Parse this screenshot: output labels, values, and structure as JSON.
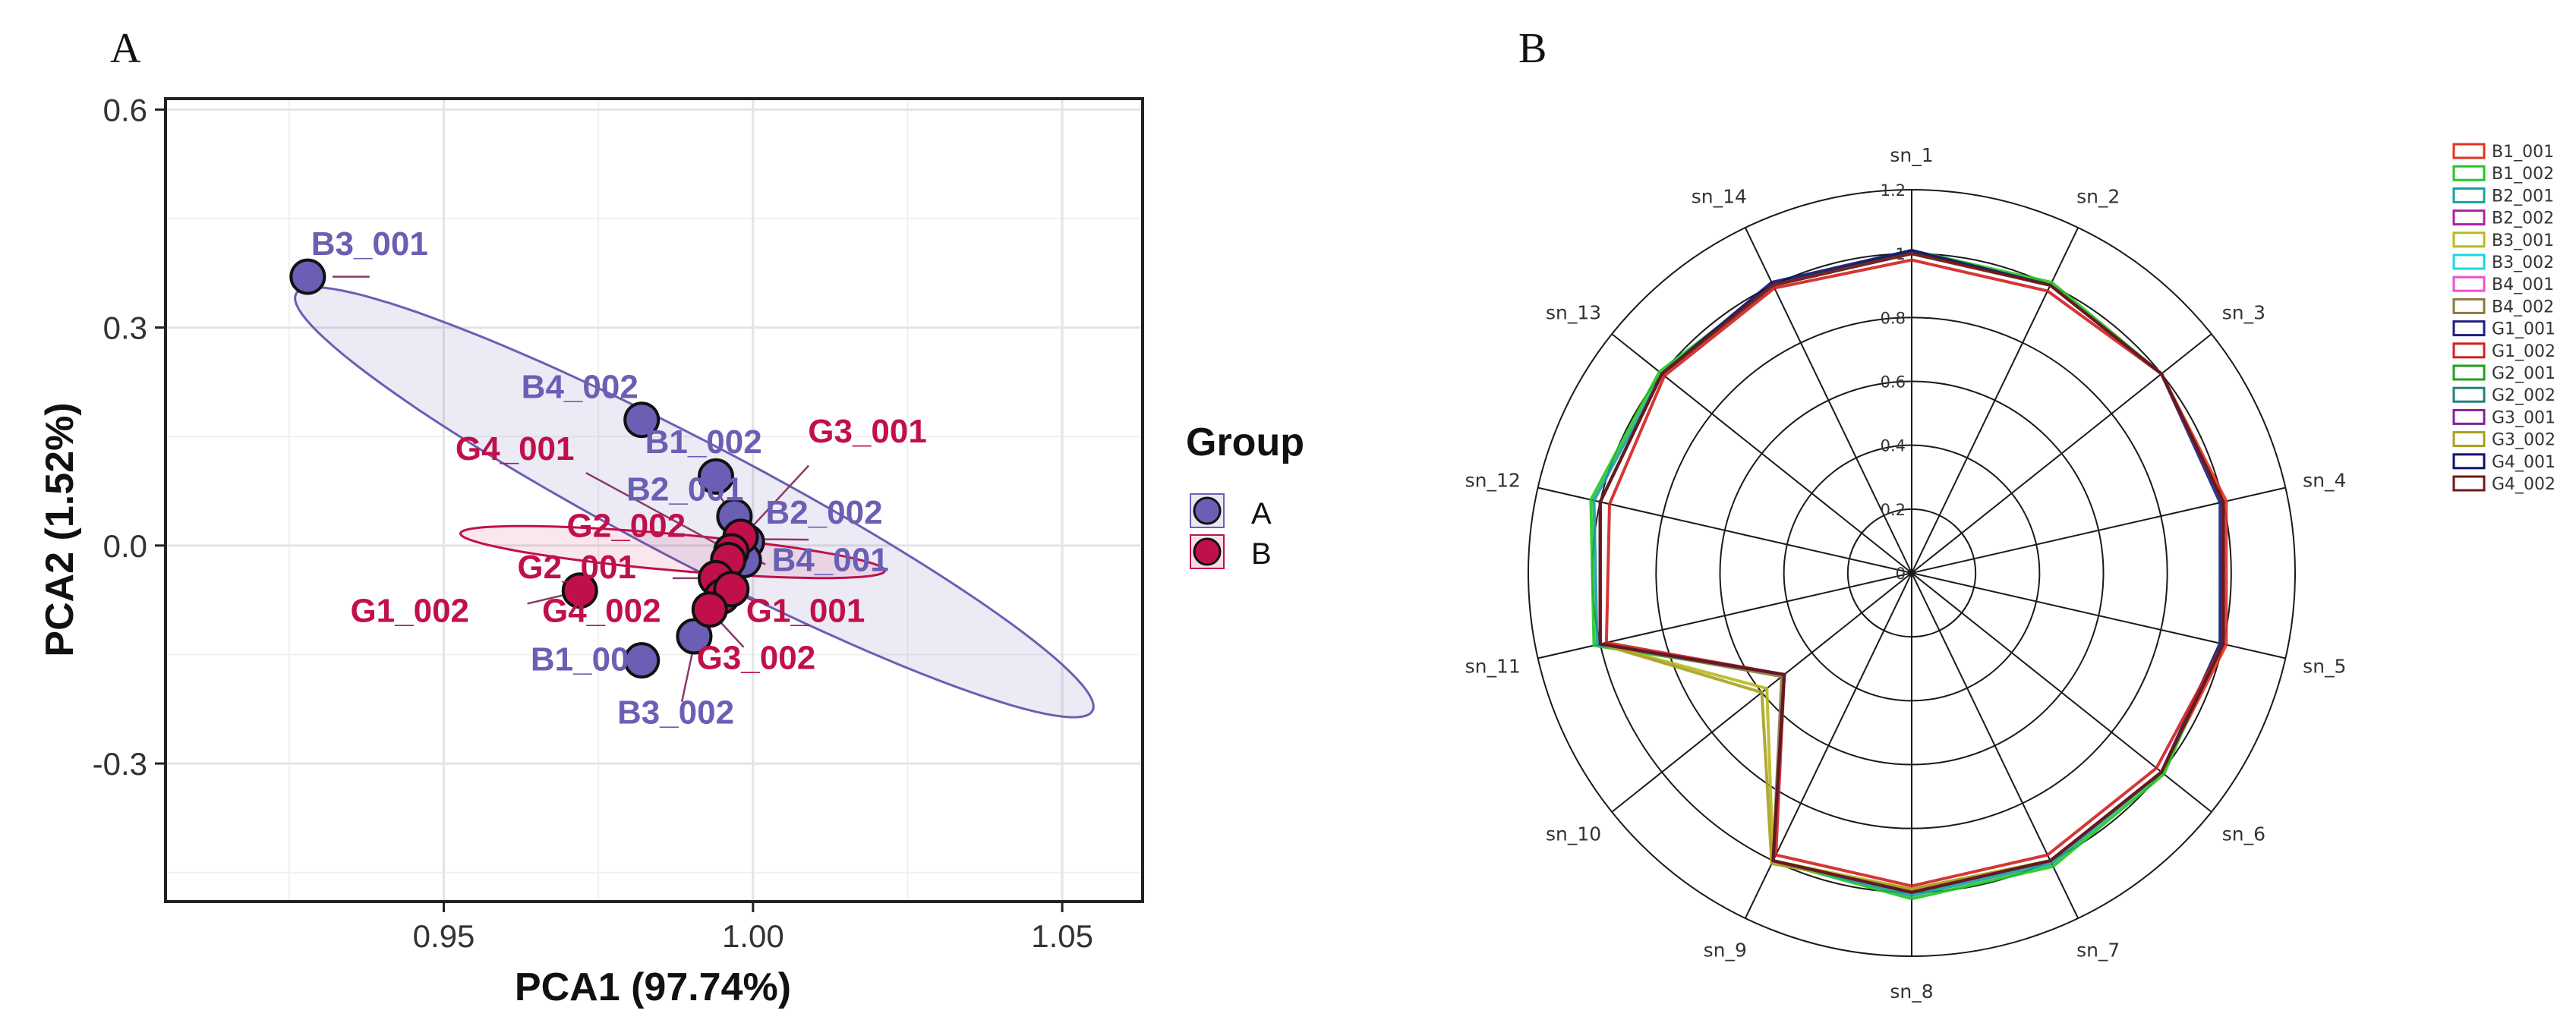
{
  "chart_data": [
    {
      "id": "A",
      "panel_label": "A",
      "type": "scatter",
      "title": "",
      "xlabel": "PCA1 (97.74%)",
      "ylabel": "PCA2 (1.52%)",
      "xlim": [
        0.905,
        1.063
      ],
      "ylim": [
        -0.49,
        0.615
      ],
      "xticks": [
        0.95,
        1.0,
        1.05
      ],
      "xtick_labels": [
        "0.95",
        "1.00",
        "1.05"
      ],
      "yticks": [
        -0.3,
        0.0,
        0.3,
        0.6
      ],
      "ytick_labels": [
        "-0.3",
        "0.0",
        "0.3",
        "0.6"
      ],
      "grid": true,
      "legend": {
        "title": "Group",
        "position": "right",
        "entries": [
          {
            "label": "A",
            "color": "#6a5fb4"
          },
          {
            "label": "B",
            "color": "#c0104a"
          }
        ]
      },
      "colors": {
        "A": "#6a5fb4",
        "B": "#c0104a",
        "A_label": "#6a5fb4",
        "B_label": "#c0104a"
      },
      "ellipses": [
        {
          "group": "A",
          "cx": 0.9905,
          "cy": 0.0595,
          "rx": 0.0735,
          "ry": 0.165,
          "angle_deg": 30.3
        },
        {
          "group": "B",
          "cx": 0.987,
          "cy": -0.009,
          "rx": 0.0345,
          "ry": 0.0255,
          "angle_deg": 6.0
        }
      ],
      "points": [
        {
          "label": "B3_001",
          "group": "A",
          "x": 0.928,
          "y": 0.37
        },
        {
          "label": "B4_002",
          "group": "A",
          "x": 0.982,
          "y": 0.173
        },
        {
          "label": "B1_002",
          "group": "A",
          "x": 0.994,
          "y": 0.095
        },
        {
          "label": "B2_001",
          "group": "A",
          "x": 0.997,
          "y": 0.04
        },
        {
          "label": "B2_002",
          "group": "A",
          "x": 0.999,
          "y": 0.005
        },
        {
          "label": "B4_001",
          "group": "A",
          "x": 0.9985,
          "y": -0.02
        },
        {
          "label": "B1_001",
          "group": "A",
          "x": 0.982,
          "y": -0.158
        },
        {
          "label": "B3_002",
          "group": "A",
          "x": 0.9905,
          "y": -0.125
        },
        {
          "label": "G3_001",
          "group": "B",
          "x": 0.998,
          "y": 0.012
        },
        {
          "label": "G4_001",
          "group": "B",
          "x": 0.9965,
          "y": -0.008
        },
        {
          "label": "G2_002",
          "group": "B",
          "x": 0.996,
          "y": -0.02
        },
        {
          "label": "G2_001",
          "group": "B",
          "x": 0.994,
          "y": -0.045
        },
        {
          "label": "G1_002",
          "group": "B",
          "x": 0.972,
          "y": -0.062
        },
        {
          "label": "G4_002",
          "group": "B",
          "x": 0.995,
          "y": -0.07
        },
        {
          "label": "G1_001",
          "group": "B",
          "x": 0.9965,
          "y": -0.06
        },
        {
          "label": "G3_002",
          "group": "B",
          "x": 0.993,
          "y": -0.088
        }
      ],
      "labels": [
        {
          "text": "B3_001",
          "group": "A",
          "x": 0.938,
          "y": 0.4,
          "anchor": "middle"
        },
        {
          "text": "B4_002",
          "group": "A",
          "x": 0.972,
          "y": 0.203,
          "anchor": "middle"
        },
        {
          "text": "B1_002",
          "group": "A",
          "x": 0.992,
          "y": 0.127,
          "anchor": "middle"
        },
        {
          "text": "B2_001",
          "group": "A",
          "x": 0.989,
          "y": 0.062,
          "anchor": "middle"
        },
        {
          "text": "B2_002",
          "group": "A",
          "x": 1.0115,
          "y": 0.03,
          "anchor": "middle"
        },
        {
          "text": "B4_001",
          "group": "A",
          "x": 1.0125,
          "y": -0.035,
          "anchor": "middle"
        },
        {
          "text": "B1_001",
          "group": "A",
          "x": 0.9735,
          "y": -0.172,
          "anchor": "middle"
        },
        {
          "text": "B3_002",
          "group": "A",
          "x": 0.9875,
          "y": -0.245,
          "anchor": "middle"
        },
        {
          "text": "G3_001",
          "group": "B",
          "x": 1.0185,
          "y": 0.142,
          "anchor": "middle"
        },
        {
          "text": "G4_001",
          "group": "B",
          "x": 0.9615,
          "y": 0.118,
          "anchor": "middle"
        },
        {
          "text": "G2_002",
          "group": "B",
          "x": 0.9795,
          "y": 0.012,
          "anchor": "middle"
        },
        {
          "text": "G2_001",
          "group": "B",
          "x": 0.9715,
          "y": -0.045,
          "anchor": "middle"
        },
        {
          "text": "G1_002",
          "group": "B",
          "x": 0.9445,
          "y": -0.105,
          "anchor": "middle"
        },
        {
          "text": "G4_002",
          "group": "B",
          "x": 0.9755,
          "y": -0.105,
          "anchor": "middle"
        },
        {
          "text": "G1_001",
          "group": "B",
          "x": 1.0085,
          "y": -0.105,
          "anchor": "middle"
        },
        {
          "text": "G3_002",
          "group": "B",
          "x": 1.0005,
          "y": -0.17,
          "anchor": "middle"
        }
      ],
      "leaders": [
        {
          "x1": 0.938,
          "y1": 0.37,
          "x2": 0.932,
          "y2": 0.37
        },
        {
          "x1": 0.9935,
          "y1": 0.082,
          "x2": 0.9965,
          "y2": 0.045
        },
        {
          "x1": 0.9975,
          "y1": 0.009,
          "x2": 1.009,
          "y2": 0.008
        },
        {
          "x1": 0.9995,
          "y1": -0.015,
          "x2": 1.002,
          "y2": -0.026
        },
        {
          "x1": 0.982,
          "y1": -0.15,
          "x2": 0.982,
          "y2": -0.15
        },
        {
          "x1": 0.9885,
          "y1": -0.215,
          "x2": 0.9905,
          "y2": -0.135
        },
        {
          "x1": 1.009,
          "y1": 0.11,
          "x2": 0.999,
          "y2": 0.018
        },
        {
          "x1": 0.973,
          "y1": 0.1,
          "x2": 0.9955,
          "y2": -0.004
        },
        {
          "x1": 0.987,
          "y1": -0.045,
          "x2": 0.9935,
          "y2": -0.045
        },
        {
          "x1": 0.9635,
          "y1": -0.08,
          "x2": 0.971,
          "y2": -0.065
        },
        {
          "x1": 1.0005,
          "y1": -0.078,
          "x2": 0.997,
          "y2": -0.064
        },
        {
          "x1": 0.9985,
          "y1": -0.14,
          "x2": 0.9935,
          "y2": -0.094
        }
      ]
    },
    {
      "id": "B",
      "panel_label": "B",
      "type": "radar",
      "title": "",
      "axes": [
        "sn_1",
        "sn_2",
        "sn_3",
        "sn_4",
        "sn_5",
        "sn_6",
        "sn_7",
        "sn_8",
        "sn_9",
        "sn_10",
        "sn_11",
        "sn_12",
        "sn_13",
        "sn_14"
      ],
      "rlim": [
        0,
        1.2
      ],
      "rings": [
        0.2,
        0.4,
        0.6,
        0.8,
        1.0,
        1.2
      ],
      "ring_labels": [
        "0",
        "0.2",
        "0.4",
        "0.6",
        "0.8",
        "1",
        "1.2"
      ],
      "legend_position": "top-right",
      "series": [
        {
          "name": "B1_001",
          "color": "#e8301e",
          "values": [
            1.0,
            1.0,
            1.0,
            1.01,
            1.01,
            1.0,
            1.0,
            1.0,
            1.0,
            0.51,
            1.0,
            1.0,
            1.0,
            1.0
          ]
        },
        {
          "name": "B1_002",
          "color": "#22c822",
          "values": [
            1.01,
            1.01,
            1.0,
            1.0,
            0.99,
            1.01,
            1.02,
            1.02,
            1.0,
            0.51,
            1.02,
            1.03,
            1.01,
            1.0
          ]
        },
        {
          "name": "B2_001",
          "color": "#1aa0a0",
          "values": [
            1.0,
            1.0,
            1.0,
            1.0,
            1.0,
            1.0,
            1.01,
            1.01,
            1.0,
            0.51,
            1.01,
            1.02,
            1.0,
            1.0
          ]
        },
        {
          "name": "B2_002",
          "color": "#b020a0",
          "values": [
            1.0,
            1.0,
            1.0,
            1.0,
            1.0,
            1.0,
            1.0,
            1.0,
            1.0,
            0.51,
            1.0,
            1.0,
            1.0,
            1.0
          ]
        },
        {
          "name": "B3_001",
          "color": "#b8b820",
          "values": [
            1.0,
            1.0,
            1.0,
            1.0,
            1.0,
            1.0,
            1.0,
            0.99,
            1.0,
            0.58,
            1.0,
            1.0,
            1.0,
            1.0
          ]
        },
        {
          "name": "B3_002",
          "color": "#18d8e0",
          "values": [
            1.0,
            1.0,
            1.0,
            1.0,
            1.0,
            1.0,
            1.0,
            1.0,
            1.0,
            0.51,
            1.0,
            1.0,
            1.0,
            1.0
          ]
        },
        {
          "name": "B4_001",
          "color": "#f050d0",
          "values": [
            1.0,
            1.0,
            1.0,
            1.0,
            1.0,
            1.0,
            1.0,
            1.0,
            1.0,
            0.51,
            1.0,
            1.0,
            1.0,
            1.0
          ]
        },
        {
          "name": "B4_002",
          "color": "#8a7a40",
          "values": [
            1.0,
            1.0,
            1.0,
            1.0,
            1.0,
            1.0,
            1.0,
            1.0,
            1.0,
            0.52,
            1.0,
            1.0,
            1.0,
            1.0
          ]
        },
        {
          "name": "G1_001",
          "color": "#202080",
          "values": [
            1.0,
            1.0,
            1.0,
            0.99,
            0.99,
            1.0,
            1.0,
            1.0,
            1.0,
            0.51,
            1.0,
            1.0,
            1.0,
            1.0
          ]
        },
        {
          "name": "G1_002",
          "color": "#d02020",
          "values": [
            0.98,
            0.98,
            1.0,
            1.0,
            1.0,
            0.98,
            0.98,
            0.98,
            0.98,
            0.51,
            0.98,
            0.97,
            0.99,
            0.99
          ]
        },
        {
          "name": "G2_001",
          "color": "#20a020",
          "values": [
            1.0,
            1.0,
            1.0,
            1.0,
            1.0,
            1.0,
            1.0,
            1.0,
            1.0,
            0.51,
            1.0,
            1.0,
            1.0,
            1.0
          ]
        },
        {
          "name": "G2_002",
          "color": "#208080",
          "values": [
            1.0,
            1.0,
            1.0,
            1.0,
            1.0,
            1.0,
            1.0,
            1.0,
            1.0,
            0.51,
            1.0,
            1.0,
            1.0,
            1.0
          ]
        },
        {
          "name": "G3_001",
          "color": "#8020a0",
          "values": [
            1.0,
            1.0,
            1.0,
            1.0,
            1.0,
            1.0,
            1.0,
            1.0,
            1.0,
            0.51,
            1.0,
            1.0,
            1.0,
            1.0
          ]
        },
        {
          "name": "G3_002",
          "color": "#a8a020",
          "values": [
            1.0,
            1.0,
            1.0,
            1.0,
            1.0,
            1.0,
            1.0,
            0.99,
            1.01,
            0.6,
            1.0,
            1.0,
            1.0,
            1.0
          ]
        },
        {
          "name": "G4_001",
          "color": "#101070",
          "values": [
            1.01,
            1.0,
            1.0,
            1.0,
            1.0,
            1.0,
            1.0,
            1.0,
            1.0,
            0.51,
            1.0,
            1.0,
            1.0,
            1.01
          ]
        },
        {
          "name": "G4_002",
          "color": "#701818",
          "values": [
            1.0,
            1.0,
            1.0,
            1.0,
            1.0,
            1.0,
            1.0,
            1.0,
            1.0,
            0.51,
            1.0,
            1.0,
            1.0,
            1.0
          ]
        }
      ]
    }
  ]
}
